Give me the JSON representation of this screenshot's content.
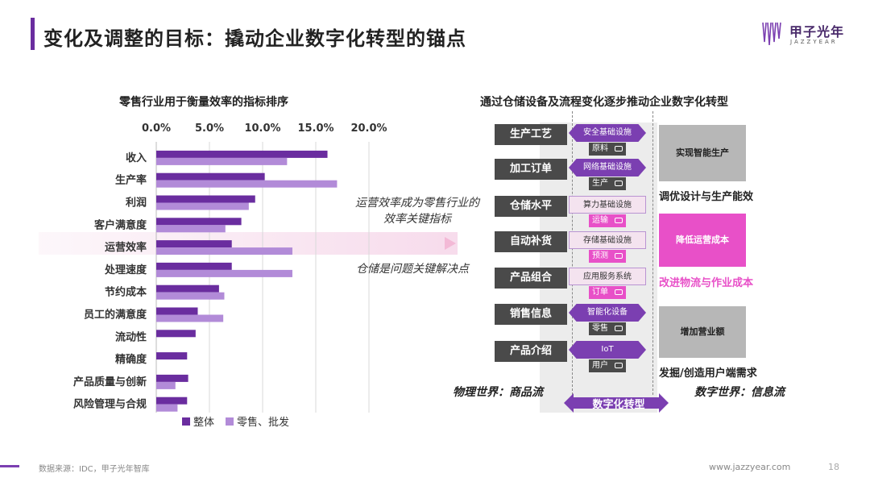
{
  "header": {
    "title": "变化及调整的目标：撬动企业数字化转型的锚点"
  },
  "logo": {
    "cn": "甲子光年",
    "en": "JAZZYEAR"
  },
  "chart_data": {
    "type": "bar",
    "orientation": "horizontal",
    "title": "零售行业用于衡量效率的指标排序",
    "categories": [
      "收入",
      "生产率",
      "利润",
      "客户满意度",
      "运营效率",
      "处理速度",
      "节约成本",
      "员工的满意度",
      "流动性",
      "精确度",
      "产品质量与创新",
      "风险管理与合规"
    ],
    "series": [
      {
        "name": "整体",
        "color": "#6a2d9f",
        "values": [
          16.1,
          10.2,
          9.3,
          8.0,
          7.1,
          7.1,
          5.9,
          3.9,
          3.7,
          2.9,
          3.0,
          2.9
        ]
      },
      {
        "name": "零售、批发",
        "color": "#b28bd8",
        "values": [
          12.3,
          17.0,
          8.7,
          6.5,
          12.8,
          12.8,
          6.4,
          6.3,
          0,
          0,
          1.8,
          2.0
        ]
      }
    ],
    "xlim": [
      0,
      20
    ],
    "xticks": [
      "0.0%",
      "5.0%",
      "10.0%",
      "15.0%",
      "20.0%"
    ],
    "gridlines": true,
    "legend": "bottom"
  },
  "annotations": [
    {
      "line1": "运营效率成为零售行业的",
      "line2": "效率关键指标"
    },
    {
      "line1": "仓储是问题关键解决点",
      "line2": ""
    }
  ],
  "diagram": {
    "title": "通过仓储设备及流程变化逐步推动企业数字化转型",
    "processes": [
      "生产工艺",
      "加工订单",
      "仓储水平",
      "自动补货",
      "产品组合",
      "销售信息",
      "产品介绍"
    ],
    "infra": [
      "安全基础设施",
      "网络基础设施",
      "算力基础设施",
      "存储基础设施",
      "应用服务系统",
      "智能化设备",
      "IoT"
    ],
    "tags": [
      "原料",
      "生产",
      "运输",
      "预测",
      "订单",
      "零售",
      "用户"
    ],
    "results": [
      {
        "box": "实现智能生产",
        "caption": "调优设计与生产能效"
      },
      {
        "box": "降低运营成本",
        "caption": "改进物流与作业成本"
      },
      {
        "box": "增加营业额",
        "caption": "发掘/创造用户端需求"
      }
    ],
    "physical": "物理世界：商品流",
    "digital": "数字世界：信息流",
    "transform": "数字化转型"
  },
  "footer": {
    "source": "数据来源：IDC，甲子光年智库",
    "site": "www.jazzyear.com",
    "page": "18"
  }
}
